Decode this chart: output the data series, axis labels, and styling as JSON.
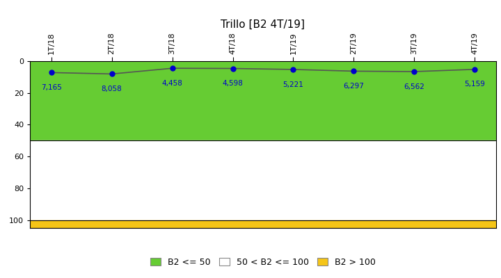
{
  "title": "Trillo [B2 4T/19]",
  "x_labels": [
    "1T/18",
    "2T/18",
    "3T/18",
    "4T/18",
    "1T/19",
    "2T/19",
    "3T/19",
    "4T/19"
  ],
  "y_values": [
    7.165,
    8.058,
    4.458,
    4.598,
    5.221,
    6.297,
    6.562,
    5.159
  ],
  "data_labels": [
    "7,165",
    "8,058",
    "4,458",
    "4,598",
    "5,221",
    "6,297",
    "6,562",
    "5,159"
  ],
  "ylim_min": 0,
  "ylim_max": 105,
  "band_green_max": 50,
  "band_white_max": 100,
  "band_yellow_max": 105,
  "green_color": "#66cc33",
  "white_color": "#ffffff",
  "yellow_color": "#f5c518",
  "line_color": "#555555",
  "dot_color": "#0000cc",
  "label_color": "#0000cc",
  "title_fontsize": 11,
  "legend_labels": [
    "B2 <= 50",
    "50 < B2 <= 100",
    "B2 > 100"
  ],
  "background_color": "#ffffff"
}
